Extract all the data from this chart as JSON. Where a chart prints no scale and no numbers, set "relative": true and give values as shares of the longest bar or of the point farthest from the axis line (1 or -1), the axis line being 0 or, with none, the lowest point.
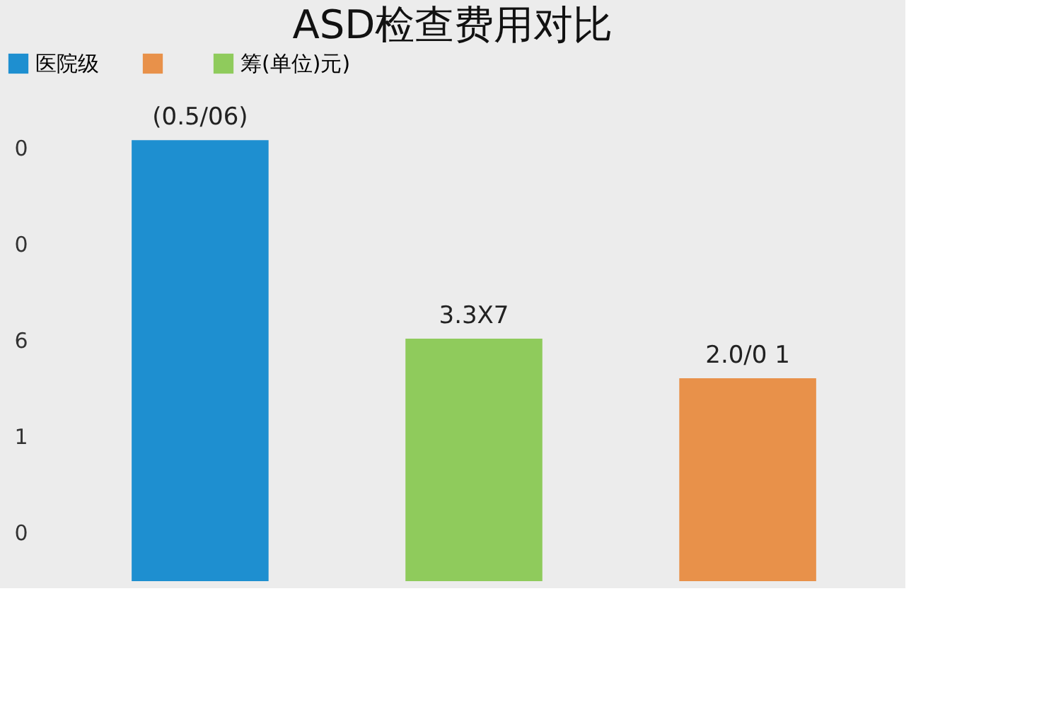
{
  "chart_data": {
    "type": "bar",
    "title": "ASD检查费用对比",
    "categories": [
      null,
      null,
      null
    ],
    "relative": true,
    "stacked": true,
    "series": [
      {
        "name": "医院级",
        "color": "#1e8fd0",
        "values": [
          1,
          null,
          null
        ]
      },
      {
        "name": null,
        "color": "#e8914a",
        "values": [
          null,
          null,
          0.46
        ]
      },
      {
        "name": "筹(单位)元)",
        "color": "#8fcb5c",
        "values": [
          null,
          0.55,
          null
        ]
      }
    ],
    "annotations": [
      {
        "text": "(0.5/06)"
      },
      {
        "text": "3.3X7"
      },
      {
        "text": "2.0/0 1"
      },
      "0",
      "0",
      "6",
      "1",
      "0"
    ],
    "legend": "top",
    "tick_labels": false
  }
}
